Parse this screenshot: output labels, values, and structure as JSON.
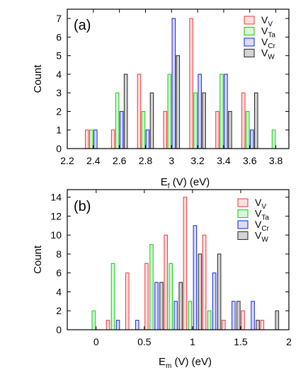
{
  "figure": {
    "legend": [
      {
        "main": "V",
        "sub": "V",
        "color": "#ef4444",
        "fill": "#fde1e1"
      },
      {
        "main": "V",
        "sub": "Ta",
        "color": "#22cc22",
        "fill": "#d9f7d9"
      },
      {
        "main": "V",
        "sub": "Cr",
        "color": "#2233dd",
        "fill": "#dadcf8"
      },
      {
        "main": "V",
        "sub": "W",
        "color": "#333333",
        "fill": "#d4d4d4"
      }
    ]
  },
  "chart_data": [
    {
      "type": "bar",
      "panel_label": "(a)",
      "xlabel": {
        "main": "E",
        "sub": "f",
        "rest": " (V) (eV)"
      },
      "ylabel": "Count",
      "xlim": [
        2.2,
        3.9
      ],
      "ylim": [
        0,
        7.5
      ],
      "xticks": [
        2.2,
        2.4,
        2.6,
        2.8,
        3.0,
        3.2,
        3.4,
        3.6,
        3.8
      ],
      "xtick_labels": [
        "2.2",
        "2.4",
        "2.6",
        "2.8",
        "3",
        "3.2",
        "3.4",
        "3.6",
        "3.8"
      ],
      "yticks": [
        0,
        1,
        2,
        3,
        4,
        5,
        6,
        7
      ],
      "bin_centers": [
        2.4,
        2.6,
        2.8,
        3.0,
        3.2,
        3.4,
        3.6,
        3.8
      ],
      "series": [
        {
          "name": "VV",
          "values": [
            1,
            1,
            4,
            2,
            7,
            2,
            3,
            0
          ]
        },
        {
          "name": "VTa",
          "values": [
            1,
            3,
            2,
            4,
            3,
            4,
            2,
            1
          ]
        },
        {
          "name": "VCr",
          "values": [
            1,
            2,
            1,
            7,
            4,
            4,
            1,
            0
          ]
        },
        {
          "name": "VW",
          "values": [
            0,
            4,
            3,
            5,
            3,
            2,
            3,
            0
          ]
        }
      ],
      "legend_position": "top-right"
    },
    {
      "type": "bar",
      "panel_label": "(b)",
      "xlabel": {
        "main": "E",
        "sub": "m",
        "rest": " (V) (eV)"
      },
      "ylabel": "Count",
      "xlim": [
        -0.3,
        2.0
      ],
      "ylim": [
        0,
        14.8
      ],
      "xticks": [
        0,
        0.5,
        1,
        1.5,
        2
      ],
      "xtick_labels": [
        "0",
        "0.5",
        "1",
        "1.5",
        "2"
      ],
      "yticks": [
        0,
        2,
        4,
        6,
        8,
        10,
        12,
        14
      ],
      "bin_centers": [
        0.0,
        0.2,
        0.4,
        0.6,
        0.8,
        1.0,
        1.2,
        1.4,
        1.6,
        1.8
      ],
      "series": [
        {
          "name": "VV",
          "values": [
            0,
            1,
            6,
            7,
            10,
            14,
            10,
            1,
            2,
            1
          ]
        },
        {
          "name": "VTa",
          "values": [
            2,
            7,
            0,
            9,
            7,
            3,
            2,
            0,
            0,
            0
          ]
        },
        {
          "name": "VCr",
          "values": [
            0,
            1,
            1,
            5,
            3,
            11,
            6,
            3,
            3,
            0
          ]
        },
        {
          "name": "VW",
          "values": [
            0,
            0,
            0,
            5,
            5,
            8,
            8,
            3,
            1,
            2
          ]
        }
      ],
      "legend_position": "top-right"
    }
  ]
}
